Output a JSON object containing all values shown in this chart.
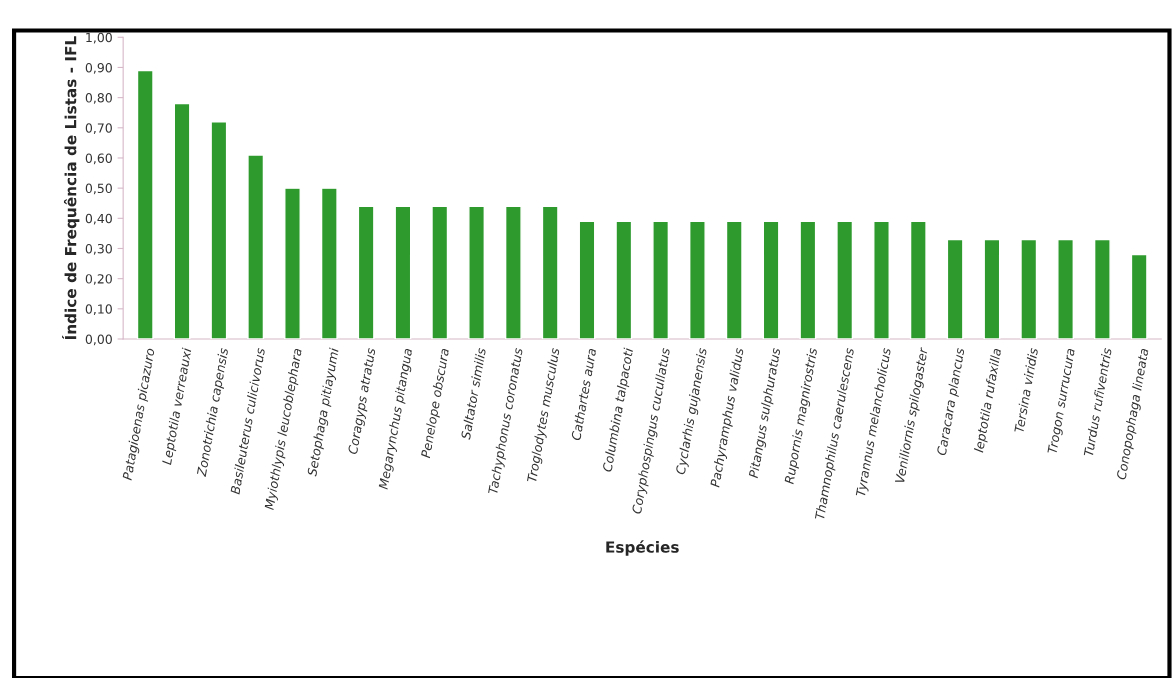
{
  "chart_data": {
    "type": "bar",
    "xlabel": "Espécies",
    "ylabel": "Índice de Frequência de Listas - IFL",
    "categories": [
      "Patagioenas picazuro",
      "Leptotila verreauxi",
      "Zonotrichia capensis",
      "Basileuterus culicivorus",
      "Myiothlypis leucoblephara",
      "Setophaga pitiayumi",
      "Coragyps atratus",
      "Megarynchus pitangua",
      "Penelope obscura",
      "Saltator similis",
      "Tachyphonus coronatus",
      "Troglodytes musculus",
      "Cathartes aura",
      "Columbina talpacoti",
      "Coryphospingus cucullatus",
      "Cyclarhis gujanensis",
      "Pachyramphus validus",
      "Pitangus sulphuratus",
      "Rupornis magnirostris",
      "Thamnophilus caerulescens",
      "Tyrannus melancholicus",
      "Veniliornis spilogaster",
      "Caracara plancus",
      "leptotila rufaxilla",
      "Tersina viridis",
      "Trogon surrucura",
      "Turdus rufiventris",
      "Conopophaga lineata"
    ],
    "values": [
      0.89,
      0.78,
      0.72,
      0.61,
      0.5,
      0.5,
      0.44,
      0.44,
      0.44,
      0.44,
      0.44,
      0.44,
      0.39,
      0.39,
      0.39,
      0.39,
      0.39,
      0.39,
      0.39,
      0.39,
      0.39,
      0.39,
      0.33,
      0.33,
      0.33,
      0.33,
      0.33,
      0.28
    ],
    "color": "#2e9a2e",
    "ylim": [
      0,
      1.0
    ],
    "yticks": [
      {
        "value": 0,
        "label": "0,00"
      },
      {
        "value": 0.1,
        "label": "0,10"
      },
      {
        "value": 0.2,
        "label": "0,20"
      },
      {
        "value": 0.3,
        "label": "0,30"
      },
      {
        "value": 0.4,
        "label": "0,40"
      },
      {
        "value": 0.5,
        "label": "0,50"
      },
      {
        "value": 0.6,
        "label": "0,60"
      },
      {
        "value": 0.7,
        "label": "0,70"
      },
      {
        "value": 0.8,
        "label": "0,80"
      },
      {
        "value": 0.9,
        "label": "0,90"
      },
      {
        "value": 1.0,
        "label": "1,00"
      }
    ],
    "grid": false,
    "legend": false
  }
}
